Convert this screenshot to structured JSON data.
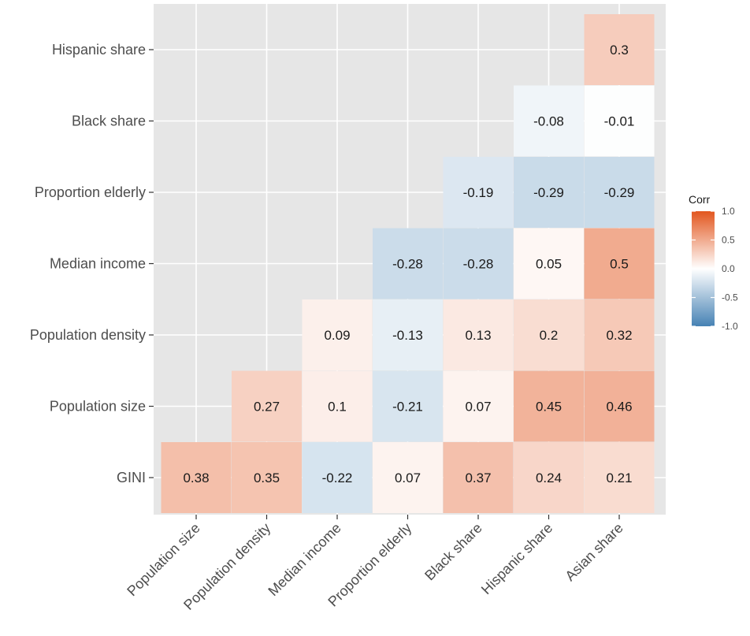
{
  "chart_data": {
    "type": "heatmap",
    "title": "",
    "xlabel": "",
    "ylabel": "",
    "x_categories": [
      "Population size",
      "Population density",
      "Median income",
      "Proportion elderly",
      "Black share",
      "Hispanic share",
      "Asian share"
    ],
    "y_categories": [
      "GINI",
      "Population size",
      "Population density",
      "Median income",
      "Proportion elderly",
      "Black share",
      "Hispanic share"
    ],
    "cells": [
      {
        "x": "Population size",
        "y": "GINI",
        "value": 0.38,
        "label": "0.38"
      },
      {
        "x": "Population density",
        "y": "GINI",
        "value": 0.35,
        "label": "0.35"
      },
      {
        "x": "Median income",
        "y": "GINI",
        "value": -0.22,
        "label": "-0.22"
      },
      {
        "x": "Proportion elderly",
        "y": "GINI",
        "value": 0.07,
        "label": "0.07"
      },
      {
        "x": "Black share",
        "y": "GINI",
        "value": 0.37,
        "label": "0.37"
      },
      {
        "x": "Hispanic share",
        "y": "GINI",
        "value": 0.24,
        "label": "0.24"
      },
      {
        "x": "Asian share",
        "y": "GINI",
        "value": 0.21,
        "label": "0.21"
      },
      {
        "x": "Population density",
        "y": "Population size",
        "value": 0.27,
        "label": "0.27"
      },
      {
        "x": "Median income",
        "y": "Population size",
        "value": 0.1,
        "label": "0.1"
      },
      {
        "x": "Proportion elderly",
        "y": "Population size",
        "value": -0.21,
        "label": "-0.21"
      },
      {
        "x": "Black share",
        "y": "Population size",
        "value": 0.07,
        "label": "0.07"
      },
      {
        "x": "Hispanic share",
        "y": "Population size",
        "value": 0.45,
        "label": "0.45"
      },
      {
        "x": "Asian share",
        "y": "Population size",
        "value": 0.46,
        "label": "0.46"
      },
      {
        "x": "Median income",
        "y": "Population density",
        "value": 0.09,
        "label": "0.09"
      },
      {
        "x": "Proportion elderly",
        "y": "Population density",
        "value": -0.13,
        "label": "-0.13"
      },
      {
        "x": "Black share",
        "y": "Population density",
        "value": 0.13,
        "label": "0.13"
      },
      {
        "x": "Hispanic share",
        "y": "Population density",
        "value": 0.2,
        "label": "0.2"
      },
      {
        "x": "Asian share",
        "y": "Population density",
        "value": 0.32,
        "label": "0.32"
      },
      {
        "x": "Proportion elderly",
        "y": "Median income",
        "value": -0.28,
        "label": "-0.28"
      },
      {
        "x": "Black share",
        "y": "Median income",
        "value": -0.28,
        "label": "-0.28"
      },
      {
        "x": "Hispanic share",
        "y": "Median income",
        "value": 0.05,
        "label": "0.05"
      },
      {
        "x": "Asian share",
        "y": "Median income",
        "value": 0.5,
        "label": "0.5"
      },
      {
        "x": "Black share",
        "y": "Proportion elderly",
        "value": -0.19,
        "label": "-0.19"
      },
      {
        "x": "Hispanic share",
        "y": "Proportion elderly",
        "value": -0.29,
        "label": "-0.29"
      },
      {
        "x": "Asian share",
        "y": "Proportion elderly",
        "value": -0.29,
        "label": "-0.29"
      },
      {
        "x": "Hispanic share",
        "y": "Black share",
        "value": -0.08,
        "label": "-0.08"
      },
      {
        "x": "Asian share",
        "y": "Black share",
        "value": -0.01,
        "label": "-0.01"
      },
      {
        "x": "Asian share",
        "y": "Hispanic share",
        "value": 0.3,
        "label": "0.3"
      }
    ],
    "grid": true,
    "legend": {
      "title": "Corr",
      "position": "right",
      "ticks": [
        "1.0",
        "0.5",
        "0.0",
        "-0.5",
        "-1.0"
      ],
      "tick_values": [
        1.0,
        0.5,
        0.0,
        -0.5,
        -1.0
      ],
      "range": [
        -1.0,
        1.0
      ],
      "colors": {
        "low": "#4682b4",
        "mid": "#ffffff",
        "high": "#e2561e"
      }
    },
    "panel_background": "#e6e6e6",
    "grid_color": "#ffffff"
  }
}
